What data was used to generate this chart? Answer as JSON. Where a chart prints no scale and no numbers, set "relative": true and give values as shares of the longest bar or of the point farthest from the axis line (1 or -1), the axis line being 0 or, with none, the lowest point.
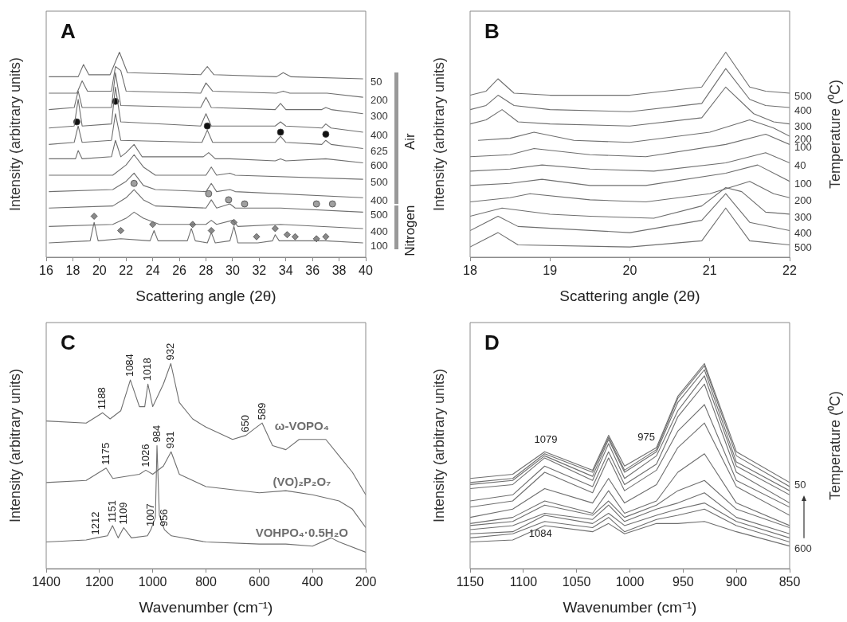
{
  "chart_data": [
    {
      "type": "line",
      "title": "A",
      "xlabel": "Scattering angle (2θ)",
      "ylabel": "Intensity (arbitrary units)",
      "relative": true,
      "xlim": [
        16,
        40
      ],
      "xticks": [
        16,
        18,
        20,
        22,
        24,
        26,
        28,
        30,
        32,
        34,
        36,
        38,
        40
      ],
      "annotations": [
        "Air",
        "Nitrogen"
      ],
      "series": [
        {
          "name": "50",
          "color": "#6e6e6e",
          "x": [
            16.2,
            18.4,
            18.8,
            19.2,
            20.8,
            21.5,
            22.1,
            27.6,
            28.1,
            28.6,
            33.3,
            33.8,
            34.4,
            39.8
          ],
          "values": [
            0.88,
            0.88,
            0.94,
            0.89,
            0.89,
            1,
            0.9,
            0.89,
            0.93,
            0.89,
            0.88,
            0.9,
            0.88,
            0.87
          ]
        },
        {
          "name": "200",
          "color": "#6e6e6e",
          "x": [
            16.2,
            18.3,
            18.7,
            19.1,
            20.9,
            21.2,
            21.6,
            22,
            27.6,
            28,
            28.5,
            33.3,
            33.8,
            34.3,
            36.8,
            37.1,
            39.8
          ],
          "values": [
            0.8,
            0.8,
            0.86,
            0.81,
            0.81,
            0.93,
            0.91,
            0.81,
            0.8,
            0.85,
            0.81,
            0.8,
            0.81,
            0.8,
            0.8,
            0.8,
            0.78
          ]
        },
        {
          "name": "300",
          "color": "#6e6e6e",
          "x": [
            16.2,
            18.1,
            18.4,
            18.7,
            20.9,
            21.2,
            21.6,
            27.6,
            28,
            28.4,
            33.2,
            33.6,
            34,
            36.7,
            37,
            37.4,
            39.8
          ],
          "values": [
            0.72,
            0.73,
            0.81,
            0.73,
            0.73,
            0.9,
            0.74,
            0.73,
            0.78,
            0.73,
            0.72,
            0.75,
            0.72,
            0.72,
            0.73,
            0.72,
            0.7
          ]
        },
        {
          "name": "400",
          "color": "#6e6e6e",
          "x": [
            16.2,
            18.1,
            18.4,
            18.7,
            20.9,
            21.2,
            21.6,
            27.6,
            28,
            28.4,
            33.2,
            33.6,
            34,
            36.7,
            37,
            37.4,
            39.8
          ],
          "values": [
            0.63,
            0.64,
            0.77,
            0.64,
            0.65,
            0.83,
            0.66,
            0.64,
            0.7,
            0.64,
            0.64,
            0.66,
            0.64,
            0.63,
            0.65,
            0.63,
            0.61
          ]
        },
        {
          "name": "625",
          "color": "#6e6e6e",
          "x": [
            16.2,
            18.1,
            18.4,
            18.7,
            20.9,
            21.2,
            21.6,
            27.7,
            28.1,
            28.5,
            33.2,
            33.6,
            34,
            36.7,
            37,
            37.4,
            39.8
          ],
          "values": [
            0.55,
            0.56,
            0.64,
            0.56,
            0.57,
            0.7,
            0.57,
            0.56,
            0.62,
            0.56,
            0.56,
            0.59,
            0.56,
            0.55,
            0.57,
            0.55,
            0.53
          ]
        },
        {
          "name": "600",
          "color": "#6e6e6e",
          "x": [
            16.2,
            18.2,
            18.4,
            18.7,
            20.9,
            21.2,
            21.6,
            22,
            22.6,
            23.2,
            27.8,
            28.2,
            28.7,
            29.8,
            33.2,
            33.6,
            34,
            37,
            39.8
          ],
          "values": [
            0.48,
            0.48,
            0.52,
            0.48,
            0.49,
            0.57,
            0.49,
            0.51,
            0.55,
            0.49,
            0.49,
            0.51,
            0.48,
            0.48,
            0.47,
            0.48,
            0.47,
            0.48,
            0.46
          ]
        },
        {
          "name": "500",
          "color": "#6e6e6e",
          "x": [
            16.2,
            21,
            22,
            22.6,
            23.3,
            24.2,
            28,
            28.4,
            28.8,
            29.8,
            30.2,
            39.8
          ],
          "values": [
            0.4,
            0.4,
            0.45,
            0.5,
            0.44,
            0.4,
            0.4,
            0.44,
            0.4,
            0.41,
            0.4,
            0.38
          ]
        },
        {
          "name": "400",
          "color": "#6e6e6e",
          "x": [
            16.2,
            21,
            22,
            22.6,
            23.3,
            24.2,
            28,
            28.4,
            28.8,
            29.8,
            30.2,
            39.8
          ],
          "values": [
            0.32,
            0.33,
            0.37,
            0.41,
            0.35,
            0.33,
            0.32,
            0.36,
            0.32,
            0.33,
            0.32,
            0.29
          ]
        },
        {
          "name": "500",
          "color": "#6e6e6e",
          "x": [
            16.2,
            21,
            22,
            22.6,
            23.3,
            24.2,
            28,
            28.4,
            28.8,
            29.8,
            30.2,
            33.6,
            39.8
          ],
          "values": [
            0.24,
            0.25,
            0.29,
            0.33,
            0.28,
            0.25,
            0.24,
            0.28,
            0.24,
            0.26,
            0.24,
            0.24,
            0.22
          ]
        },
        {
          "name": "400",
          "color": "#6e6e6e",
          "x": [
            16.2,
            21,
            22,
            22.6,
            23.3,
            24.5,
            28,
            28.4,
            28.8,
            30,
            30.4,
            33.6,
            39.8
          ],
          "values": [
            0.15,
            0.16,
            0.19,
            0.22,
            0.19,
            0.16,
            0.16,
            0.18,
            0.16,
            0.18,
            0.15,
            0.16,
            0.14
          ]
        },
        {
          "name": "100",
          "color": "#6e6e6e",
          "x": [
            16.2,
            19.3,
            19.6,
            19.9,
            21.6,
            23.8,
            24.1,
            24.4,
            26.6,
            26.9,
            27.2,
            28.1,
            28.4,
            28.7,
            29.8,
            30.1,
            30.4,
            31.9,
            33,
            33.2,
            33.5,
            34.4,
            37,
            39.8
          ],
          "values": [
            0.07,
            0.08,
            0.17,
            0.08,
            0.09,
            0.08,
            0.13,
            0.08,
            0.08,
            0.14,
            0.08,
            0.07,
            0.12,
            0.07,
            0.08,
            0.15,
            0.07,
            0.07,
            0.08,
            0.11,
            0.08,
            0.08,
            0.08,
            0.07
          ]
        },
        {
          "type": "scatter",
          "marker": "circle",
          "color": "#111111",
          "x": [
            18.3,
            21.2,
            28.1,
            33.6,
            37
          ],
          "values": [
            0.66,
            0.76,
            0.64,
            0.61,
            0.6
          ]
        },
        {
          "type": "scatter",
          "marker": "circle",
          "color": "#a0a0a0",
          "x": [
            22.6,
            28.2,
            29.7,
            30.9,
            36.3,
            37.5
          ],
          "values": [
            0.36,
            0.31,
            0.28,
            0.26,
            0.26,
            0.26
          ]
        },
        {
          "type": "scatter",
          "marker": "diamond",
          "color": "#8a8a8a",
          "x": [
            19.6,
            21.6,
            24,
            27,
            28.4,
            30.1,
            31.8,
            33.2,
            34.1,
            34.7,
            36.3,
            37
          ],
          "values": [
            0.2,
            0.13,
            0.16,
            0.16,
            0.13,
            0.17,
            0.1,
            0.14,
            0.11,
            0.1,
            0.09,
            0.1
          ]
        }
      ]
    },
    {
      "type": "line",
      "title": "B",
      "xlabel": "Scattering angle (2θ)",
      "ylabel": "Intensity (arbitrary units)",
      "y2label": "Temperature (⁰C)",
      "relative": true,
      "xlim": [
        18,
        22
      ],
      "xticks": [
        18,
        19,
        20,
        21,
        22
      ],
      "series": [
        {
          "name": "500",
          "color": "#6e6e6e",
          "x": [
            18,
            18.2,
            18.35,
            18.55,
            19,
            20,
            20.9,
            21.2,
            21.5,
            21.7,
            22
          ],
          "values": [
            0.79,
            0.81,
            0.87,
            0.8,
            0.79,
            0.79,
            0.83,
            1,
            0.83,
            0.81,
            0.8
          ]
        },
        {
          "name": "400",
          "color": "#6e6e6e",
          "x": [
            18,
            18.2,
            18.35,
            18.55,
            19,
            20,
            20.9,
            21.2,
            21.5,
            21.7,
            22
          ],
          "values": [
            0.72,
            0.74,
            0.79,
            0.74,
            0.72,
            0.71,
            0.75,
            0.92,
            0.77,
            0.74,
            0.73
          ]
        },
        {
          "name": "300",
          "color": "#6e6e6e",
          "x": [
            18,
            18.2,
            18.4,
            18.6,
            19,
            20,
            20.9,
            21.2,
            21.55,
            21.8,
            22
          ],
          "values": [
            0.65,
            0.67,
            0.72,
            0.66,
            0.65,
            0.64,
            0.68,
            0.83,
            0.7,
            0.66,
            0.65
          ]
        },
        {
          "name": "200",
          "color": "#6e6e6e",
          "x": [
            18.1,
            18.5,
            18.8,
            19.3,
            20,
            21,
            21.5,
            21.8,
            22
          ],
          "values": [
            0.57,
            0.58,
            0.61,
            0.57,
            0.56,
            0.61,
            0.67,
            0.63,
            0.59
          ]
        },
        {
          "name": "100",
          "color": "#6e6e6e",
          "x": [
            18,
            18.5,
            18.8,
            19.5,
            20.2,
            21.2,
            21.7,
            22
          ],
          "values": [
            0.49,
            0.5,
            0.53,
            0.5,
            0.49,
            0.55,
            0.6,
            0.55
          ]
        },
        {
          "name": "40",
          "color": "#6e6e6e",
          "x": [
            18,
            18.5,
            18.9,
            19.5,
            20.3,
            21.2,
            21.7,
            22
          ],
          "values": [
            0.42,
            0.43,
            0.45,
            0.43,
            0.42,
            0.46,
            0.51,
            0.46
          ]
        },
        {
          "name": "100",
          "color": "#6e6e6e",
          "x": [
            18,
            18.5,
            18.9,
            19.5,
            20.2,
            21.2,
            21.6,
            22
          ],
          "values": [
            0.35,
            0.36,
            0.38,
            0.35,
            0.35,
            0.41,
            0.45,
            0.37
          ]
        },
        {
          "name": "200",
          "color": "#6e6e6e",
          "x": [
            18,
            18.5,
            18.75,
            19.5,
            20.2,
            21,
            21.5,
            21.8,
            22
          ],
          "values": [
            0.27,
            0.29,
            0.31,
            0.28,
            0.27,
            0.31,
            0.37,
            0.31,
            0.29
          ]
        },
        {
          "name": "300",
          "color": "#6e6e6e",
          "x": [
            18,
            18.4,
            19,
            19.5,
            20.3,
            20.9,
            21.2,
            21.4,
            21.7,
            22
          ],
          "values": [
            0.2,
            0.24,
            0.21,
            0.2,
            0.19,
            0.25,
            0.34,
            0.32,
            0.22,
            0.21
          ]
        },
        {
          "name": "400",
          "color": "#6e6e6e",
          "x": [
            18,
            18.2,
            18.35,
            18.6,
            20,
            20.9,
            21.2,
            21.5,
            22
          ],
          "values": [
            0.13,
            0.17,
            0.2,
            0.15,
            0.12,
            0.18,
            0.31,
            0.17,
            0.13
          ]
        },
        {
          "name": "500",
          "color": "#6e6e6e",
          "x": [
            18,
            18.2,
            18.35,
            18.6,
            20,
            20.9,
            21.2,
            21.5,
            22
          ],
          "values": [
            0.05,
            0.09,
            0.12,
            0.06,
            0.05,
            0.08,
            0.24,
            0.08,
            0.06
          ]
        }
      ]
    },
    {
      "type": "line",
      "title": "C",
      "xlabel": "Wavenumber (cm⁻¹)",
      "ylabel": "Intensity (arbitrary units)",
      "relative": true,
      "xlim": [
        1400,
        200
      ],
      "xticks": [
        1400,
        1200,
        1000,
        800,
        600,
        400,
        200
      ],
      "annotations": [
        {
          "text": "1188",
          "x": 1188,
          "y": 0.76
        },
        {
          "text": "1084",
          "x": 1084,
          "y": 0.92
        },
        {
          "text": "1018",
          "x": 1018,
          "y": 0.9
        },
        {
          "text": "932",
          "x": 932,
          "y": 1
        },
        {
          "text": "650",
          "x": 650,
          "y": 0.65
        },
        {
          "text": "589",
          "x": 589,
          "y": 0.71
        },
        {
          "text": "1175",
          "x": 1175,
          "y": 0.49
        },
        {
          "text": "1026",
          "x": 1026,
          "y": 0.48
        },
        {
          "text": "984",
          "x": 984,
          "y": 0.6
        },
        {
          "text": "931",
          "x": 931,
          "y": 0.57
        },
        {
          "text": "1212",
          "x": 1212,
          "y": 0.15
        },
        {
          "text": "1151",
          "x": 1151,
          "y": 0.21
        },
        {
          "text": "1109",
          "x": 1109,
          "y": 0.2
        },
        {
          "text": "1007",
          "x": 1007,
          "y": 0.19
        },
        {
          "text": "956",
          "x": 956,
          "y": 0.19
        }
      ],
      "series": [
        {
          "name": "ω-VOPO₄",
          "color": "#6e6e6e",
          "x": [
            1400,
            1250,
            1188,
            1160,
            1120,
            1084,
            1050,
            1030,
            1018,
            1000,
            960,
            932,
            900,
            850,
            800,
            700,
            650,
            620,
            589,
            550,
            500,
            450,
            400,
            350,
            300,
            250,
            200
          ],
          "values": [
            0.72,
            0.71,
            0.76,
            0.73,
            0.77,
            0.92,
            0.79,
            0.79,
            0.9,
            0.79,
            0.9,
            1,
            0.81,
            0.73,
            0.69,
            0.63,
            0.65,
            0.68,
            0.71,
            0.6,
            0.58,
            0.63,
            0.63,
            0.63,
            0.55,
            0.47,
            0.36
          ]
        },
        {
          "name": "(VO)₂P₂O₇",
          "color": "#6e6e6e",
          "x": [
            1400,
            1250,
            1175,
            1150,
            1050,
            1026,
            1000,
            960,
            931,
            900,
            800,
            600,
            500,
            400,
            300,
            250,
            200
          ],
          "values": [
            0.42,
            0.43,
            0.49,
            0.44,
            0.46,
            0.48,
            0.46,
            0.5,
            0.57,
            0.46,
            0.4,
            0.37,
            0.38,
            0.36,
            0.33,
            0.29,
            0.2
          ]
        },
        {
          "name": "VOHPO₄·0.5H₂O",
          "color": "#6e6e6e",
          "x": [
            1400,
            1250,
            1212,
            1170,
            1151,
            1130,
            1109,
            1080,
            1020,
            1007,
            990,
            984,
            975,
            956,
            930,
            800,
            600,
            500,
            400,
            330,
            300,
            200
          ],
          "values": [
            0.13,
            0.14,
            0.15,
            0.16,
            0.21,
            0.15,
            0.2,
            0.15,
            0.16,
            0.19,
            0.25,
            0.6,
            0.26,
            0.19,
            0.16,
            0.13,
            0.12,
            0.12,
            0.11,
            0.15,
            0.13,
            0.08
          ]
        }
      ]
    },
    {
      "type": "line",
      "title": "D",
      "xlabel": "Wavenumber (cm⁻¹)",
      "ylabel": "Intensity (arbitrary units)",
      "y2label": "Temperature (⁰C)",
      "relative": true,
      "xlim": [
        1150,
        850
      ],
      "xticks": [
        1150,
        1100,
        1050,
        1000,
        950,
        900,
        850
      ],
      "annotations": [
        {
          "text": "1079",
          "x": 1079,
          "y": 0.57
        },
        {
          "text": "975",
          "x": 975,
          "y": 0.59
        },
        {
          "text": "1084",
          "x": 1084,
          "y": 0.21
        }
      ],
      "series": [
        {
          "name": "50",
          "color": "#6e6e6e",
          "x": [
            1150,
            1110,
            1080,
            1035,
            1020,
            1005,
            975,
            955,
            930,
            900,
            850
          ],
          "values": [
            0.44,
            0.46,
            0.57,
            0.48,
            0.65,
            0.5,
            0.59,
            0.84,
            1,
            0.57,
            0.42
          ]
        },
        {
          "color": "#6e6e6e",
          "x": [
            1150,
            1110,
            1080,
            1035,
            1020,
            1005,
            975,
            955,
            930,
            900,
            850
          ],
          "values": [
            0.42,
            0.44,
            0.56,
            0.47,
            0.64,
            0.48,
            0.58,
            0.83,
            0.99,
            0.55,
            0.4
          ]
        },
        {
          "color": "#6e6e6e",
          "x": [
            1150,
            1110,
            1080,
            1035,
            1020,
            1005,
            975,
            955,
            930,
            900,
            850
          ],
          "values": [
            0.41,
            0.43,
            0.55,
            0.45,
            0.63,
            0.47,
            0.57,
            0.81,
            0.97,
            0.52,
            0.38
          ]
        },
        {
          "color": "#6e6e6e",
          "x": [
            1150,
            1110,
            1080,
            1035,
            1020,
            1005,
            975,
            955,
            930,
            900,
            850
          ],
          "values": [
            0.39,
            0.41,
            0.54,
            0.43,
            0.61,
            0.44,
            0.55,
            0.77,
            0.94,
            0.5,
            0.36
          ]
        },
        {
          "color": "#6e6e6e",
          "x": [
            1150,
            1110,
            1080,
            1035,
            1020,
            1005,
            975,
            955,
            930,
            900,
            850
          ],
          "values": [
            0.33,
            0.36,
            0.5,
            0.4,
            0.57,
            0.41,
            0.51,
            0.74,
            0.9,
            0.47,
            0.32
          ]
        },
        {
          "color": "#6e6e6e",
          "x": [
            1150,
            1110,
            1080,
            1035,
            1020,
            1005,
            975,
            955,
            930,
            900,
            850
          ],
          "values": [
            0.3,
            0.33,
            0.47,
            0.37,
            0.54,
            0.38,
            0.48,
            0.67,
            0.8,
            0.43,
            0.3
          ]
        },
        {
          "color": "#6e6e6e",
          "x": [
            1150,
            1110,
            1080,
            1035,
            1020,
            1005,
            975,
            955,
            930,
            900,
            850
          ],
          "values": [
            0.25,
            0.29,
            0.39,
            0.32,
            0.44,
            0.32,
            0.41,
            0.59,
            0.71,
            0.4,
            0.26
          ]
        },
        {
          "color": "#6e6e6e",
          "x": [
            1150,
            1110,
            1080,
            1035,
            1020,
            1005,
            975,
            955,
            930,
            900,
            850
          ],
          "values": [
            0.22,
            0.25,
            0.33,
            0.27,
            0.38,
            0.27,
            0.33,
            0.47,
            0.56,
            0.32,
            0.21
          ]
        },
        {
          "color": "#6e6e6e",
          "x": [
            1150,
            1110,
            1080,
            1035,
            1020,
            1005,
            975,
            955,
            930,
            900,
            850
          ],
          "values": [
            0.21,
            0.23,
            0.31,
            0.26,
            0.33,
            0.25,
            0.31,
            0.38,
            0.43,
            0.29,
            0.2
          ]
        },
        {
          "color": "#6e6e6e",
          "x": [
            1150,
            1110,
            1080,
            1035,
            1020,
            1005,
            975,
            955,
            930,
            900,
            850
          ],
          "values": [
            0.19,
            0.21,
            0.27,
            0.24,
            0.31,
            0.23,
            0.29,
            0.32,
            0.37,
            0.25,
            0.17
          ]
        },
        {
          "color": "#6e6e6e",
          "x": [
            1150,
            1110,
            1080,
            1035,
            1020,
            1005,
            975,
            955,
            930,
            900,
            850
          ],
          "values": [
            0.17,
            0.18,
            0.26,
            0.22,
            0.27,
            0.21,
            0.26,
            0.29,
            0.32,
            0.23,
            0.15
          ]
        },
        {
          "color": "#6e6e6e",
          "x": [
            1150,
            1110,
            1080,
            1035,
            1020,
            1005,
            975,
            955,
            930,
            900,
            850
          ],
          "values": [
            0.15,
            0.17,
            0.23,
            0.2,
            0.25,
            0.18,
            0.24,
            0.26,
            0.29,
            0.21,
            0.13
          ]
        },
        {
          "name": "600",
          "color": "#6e6e6e",
          "x": [
            1150,
            1110,
            1080,
            1035,
            1020,
            1005,
            975,
            955,
            930,
            900,
            850
          ],
          "values": [
            0.13,
            0.14,
            0.21,
            0.18,
            0.22,
            0.17,
            0.22,
            0.22,
            0.23,
            0.18,
            0.11
          ]
        }
      ]
    }
  ]
}
